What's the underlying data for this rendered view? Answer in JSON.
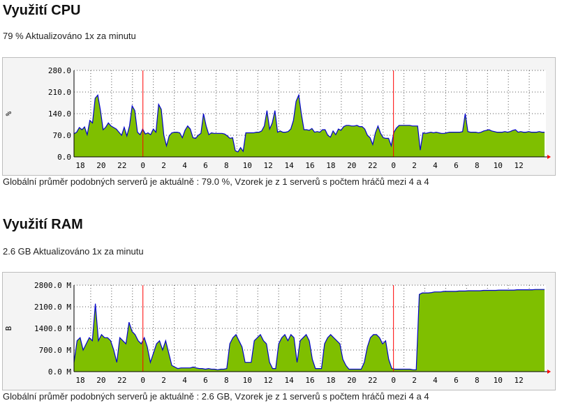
{
  "cpu": {
    "title": "Využití CPU",
    "subtitle": "79 % Aktualizováno 1x za minutu",
    "footer": "Globální průměr podobných serverů je aktuálně : 79.0 %, Vzorek je z 1 serverů s počtem hráčů mezi 4 a 4",
    "chart_data": {
      "type": "area",
      "ylabel": "%",
      "ylim": [
        0,
        280
      ],
      "y_ticks": [
        "280.0",
        "210.0",
        "140.0",
        "70.0",
        "0.0"
      ],
      "x_ticks": [
        "18",
        "20",
        "22",
        "0",
        "2",
        "4",
        "6",
        "8",
        "10",
        "12",
        "14",
        "16",
        "18",
        "20",
        "22",
        "0",
        "2",
        "4",
        "6",
        "8",
        "10",
        "12"
      ],
      "day_boundaries": [
        "0",
        "0"
      ],
      "grid": true,
      "fill_color": "#7fbf00",
      "line_color": "#0000cc",
      "values": [
        75,
        80,
        95,
        88,
        97,
        72,
        118,
        110,
        190,
        200,
        150,
        88,
        96,
        110,
        100,
        95,
        90,
        80,
        70,
        96,
        68,
        100,
        165,
        150,
        80,
        72,
        90,
        74,
        78,
        72,
        90,
        80,
        170,
        154,
        70,
        36,
        68,
        78,
        80,
        80,
        78,
        62,
        86,
        100,
        90,
        62,
        60,
        70,
        76,
        140,
        100,
        72,
        78,
        76,
        76,
        76,
        76,
        74,
        68,
        60,
        62,
        20,
        16,
        30,
        18,
        78,
        78,
        78,
        78,
        80,
        80,
        84,
        100,
        150,
        90,
        110,
        150,
        80,
        84,
        80,
        80,
        82,
        90,
        118,
        180,
        200,
        140,
        88,
        88,
        86,
        92,
        80,
        82,
        80,
        88,
        88,
        70,
        64,
        84,
        72,
        90,
        86,
        98,
        102,
        102,
        100,
        100,
        102,
        98,
        98,
        90,
        70,
        62,
        40,
        78,
        100,
        76,
        62,
        60,
        60,
        36,
        80,
        94,
        102,
        102,
        102,
        102,
        102,
        100,
        100,
        100,
        22,
        78,
        76,
        78,
        80,
        78,
        80,
        78,
        76,
        76,
        78,
        80,
        80,
        80,
        80,
        80,
        82,
        140,
        82,
        80,
        80,
        80,
        78,
        80,
        84,
        86,
        88,
        84,
        82,
        80,
        80,
        80,
        82,
        80,
        82,
        86,
        88,
        80,
        82,
        80,
        80,
        82,
        80,
        80,
        80,
        82,
        80,
        80
      ]
    }
  },
  "ram": {
    "title": "Využití RAM",
    "subtitle": "2.6 GB Aktualizováno 1x za minutu",
    "footer": "Globální průměr podobných serverů je aktuálně : 2.6 GB, Vzorek je z 1 serverů s počtem hráčů mezi 4 a 4",
    "chart_data": {
      "type": "area",
      "ylabel": "B",
      "ylim": [
        0,
        2800
      ],
      "y_ticks": [
        "2800.0 M",
        "2100.0 M",
        "1400.0 M",
        "700.0 M",
        "0.0 M"
      ],
      "x_ticks": [
        "18",
        "20",
        "22",
        "0",
        "2",
        "4",
        "6",
        "8",
        "10",
        "12",
        "14",
        "16",
        "18",
        "20",
        "22",
        "0",
        "2",
        "4",
        "6",
        "8",
        "10",
        "12"
      ],
      "day_boundaries": [
        "0",
        "0"
      ],
      "grid": true,
      "fill_color": "#7fbf00",
      "line_color": "#0000cc",
      "values": [
        300,
        1000,
        1100,
        700,
        900,
        1100,
        1000,
        2200,
        1000,
        1200,
        1100,
        1100,
        1000,
        700,
        300,
        1100,
        1000,
        900,
        1600,
        1300,
        1200,
        1000,
        900,
        1100,
        800,
        300,
        600,
        900,
        1000,
        700,
        1000,
        600,
        200,
        150,
        100,
        120,
        120,
        120,
        120,
        150,
        120,
        100,
        100,
        80,
        100,
        80,
        80,
        60,
        80,
        80,
        100,
        900,
        1100,
        1200,
        1000,
        800,
        300,
        300,
        300,
        1000,
        1100,
        1200,
        1000,
        900,
        300,
        100,
        100,
        900,
        1100,
        1200,
        1000,
        1200,
        1100,
        300,
        1000,
        1100,
        1200,
        1000,
        400,
        100,
        100,
        100,
        900,
        1100,
        1200,
        1100,
        1000,
        900,
        400,
        200,
        80,
        80,
        80,
        80,
        80,
        300,
        800,
        1100,
        1200,
        1200,
        1100,
        900,
        1000,
        400,
        100,
        80,
        80,
        80,
        80,
        80,
        80,
        60,
        60,
        2500,
        2550,
        2550,
        2550,
        2560,
        2580,
        2580,
        2580,
        2600,
        2600,
        2600,
        2600,
        2600,
        2610,
        2610,
        2610,
        2620,
        2620,
        2620,
        2620,
        2620,
        2630,
        2630,
        2630,
        2630,
        2630,
        2640,
        2640,
        2640,
        2640,
        2640,
        2640,
        2650,
        2650,
        2650,
        2650,
        2650,
        2650,
        2660,
        2660,
        2660,
        2660
      ]
    }
  }
}
